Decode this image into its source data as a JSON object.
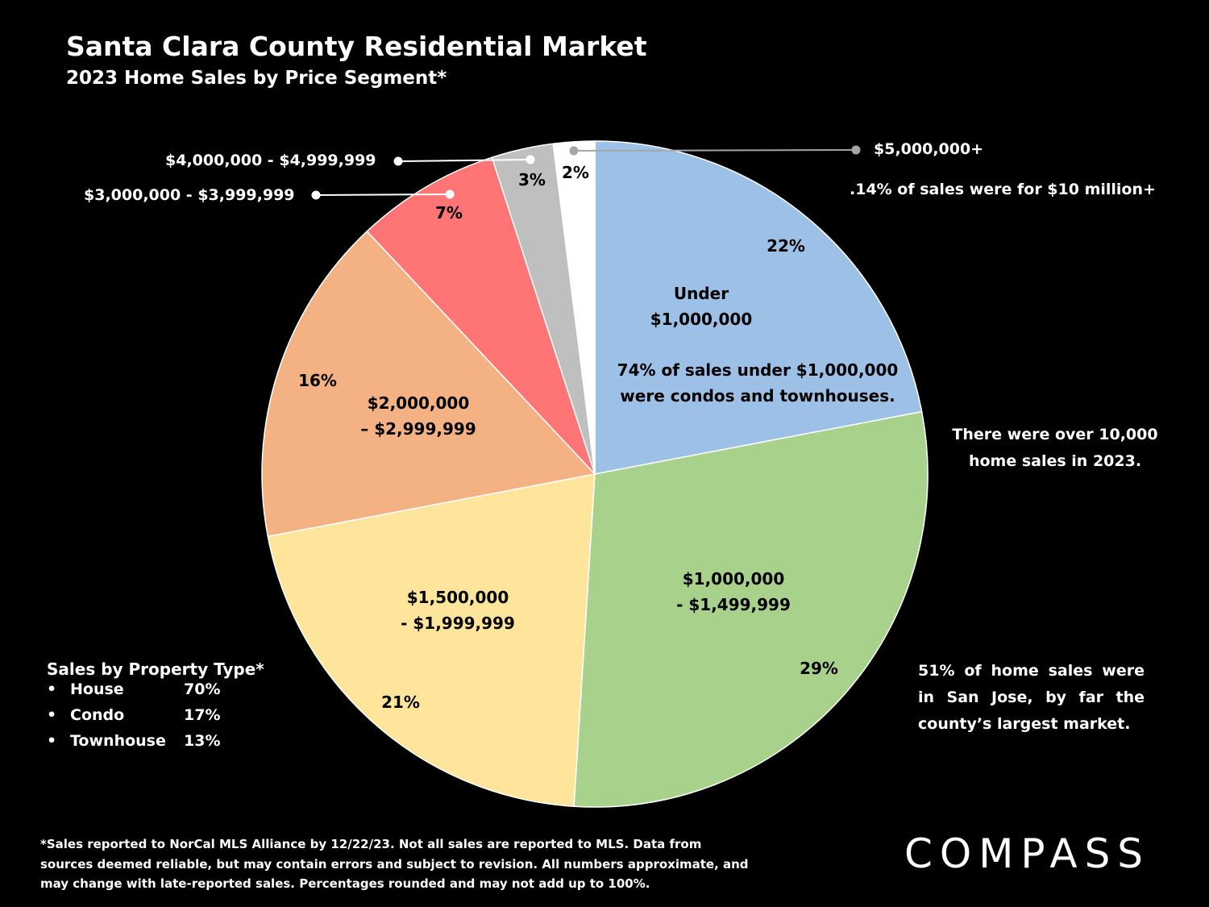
{
  "title": "Santa Clara County Residential Market",
  "subtitle": "2023 Home Sales by Price Segment*",
  "chart_data": {
    "type": "pie",
    "start_angle_deg": 0,
    "direction": "clockwise",
    "slices": [
      {
        "label_lines": [
          "Under",
          "$1,000,000"
        ],
        "value": 22,
        "value_label": "22%",
        "color": "#9dc0e6",
        "note_lines": [
          "74% of sales under $1,000,000",
          "were condos and townhouses."
        ]
      },
      {
        "label_lines": [
          "$1,000,000",
          "- $1,499,999"
        ],
        "value": 29,
        "value_label": "29%",
        "color": "#a8d18c"
      },
      {
        "label_lines": [
          "$1,500,000",
          "- $1,999,999"
        ],
        "value": 21,
        "value_label": "21%",
        "color": "#fee59b"
      },
      {
        "label_lines": [
          "$2,000,000",
          "– $2,999,999"
        ],
        "value": 16,
        "value_label": "16%",
        "color": "#f4b183"
      },
      {
        "label": "$3,000,000 - $3,999,999",
        "value": 7,
        "value_label": "7%",
        "color": "#ff7576",
        "callout_dot": "#ffffff"
      },
      {
        "label": "$4,000,000 - $4,999,999",
        "value": 3,
        "value_label": "3%",
        "color": "#bfbfbf",
        "callout_dot": "#ffffff"
      },
      {
        "label": "$5,000,000+",
        "value": 2,
        "value_label": "2%",
        "color": "#ffffff",
        "callout_dot": "#a6a6a6"
      }
    ]
  },
  "notes": {
    "ten_million": ".14% of sales were for $10 million+",
    "total_sales_lines": [
      "There were over 10,000",
      "home sales in 2023."
    ],
    "san_jose": "51% of home sales were in San Jose, by far the county’s largest market."
  },
  "property_type": {
    "title": "Sales by Property Type*",
    "bullet": "•",
    "rows": [
      {
        "name": "House",
        "pct": "70%"
      },
      {
        "name": "Condo",
        "pct": "17%"
      },
      {
        "name": "Townhouse",
        "pct": "13%"
      }
    ]
  },
  "footnote": "*Sales reported to NorCal MLS Alliance by 12/22/23. Not all sales are reported to MLS. Data from sources deemed reliable, but may contain errors and subject to revision. All numbers approximate, and may change with late-reported sales. Percentages rounded and may not add up to 100%.",
  "logo": "COMPASS"
}
